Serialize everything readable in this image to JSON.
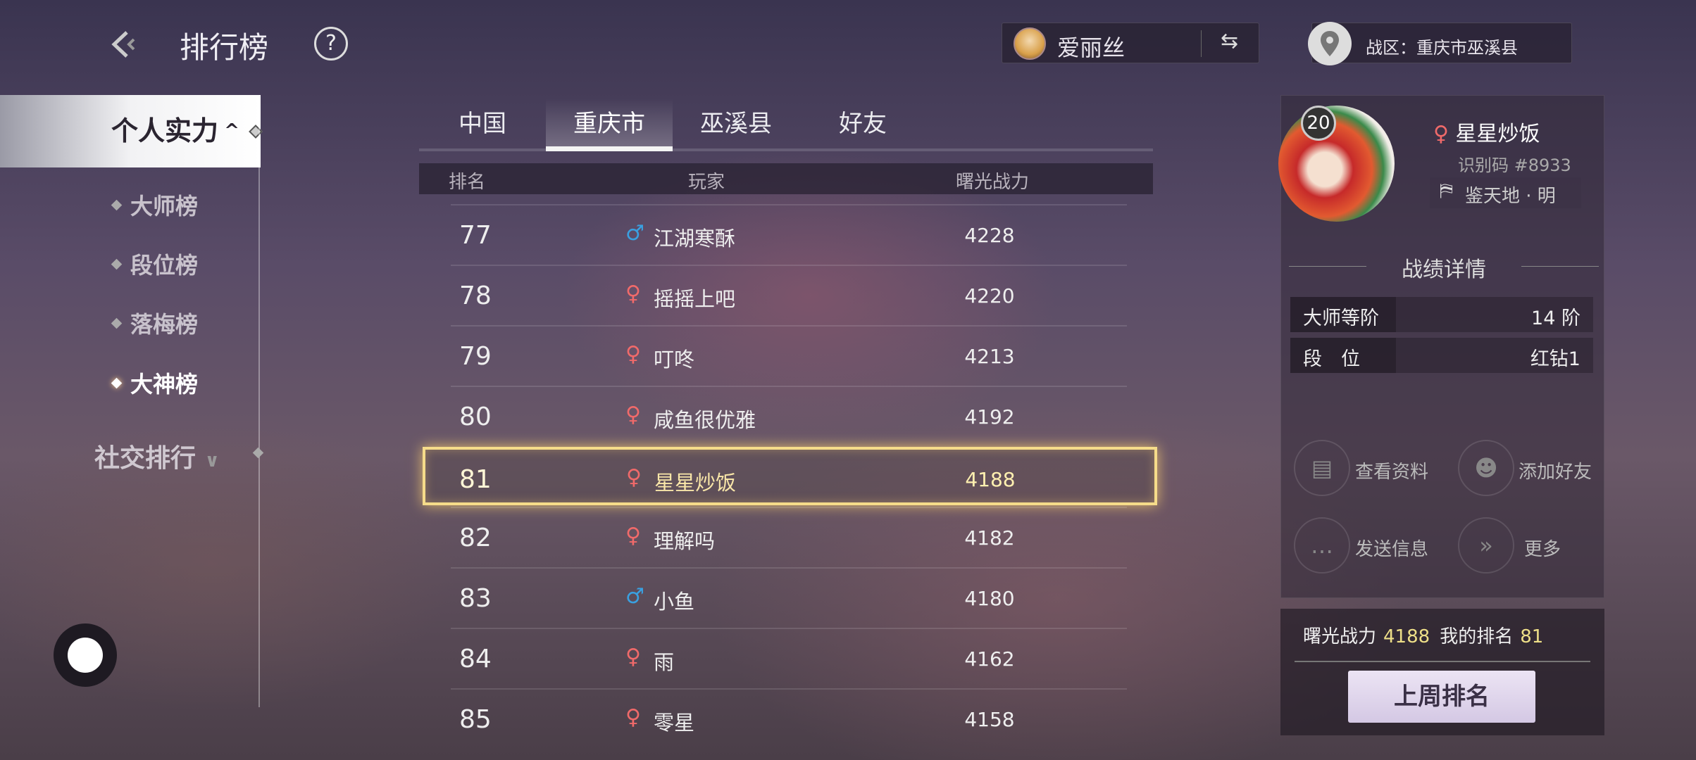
{
  "header": {
    "title": "排行榜",
    "help": "?",
    "account_name": "爱丽丝",
    "zone": "战区：重庆市巫溪县"
  },
  "sidebar": {
    "group1": "个人实力",
    "items": [
      {
        "label": "大师榜"
      },
      {
        "label": "段位榜"
      },
      {
        "label": "落梅榜"
      },
      {
        "label": "大神榜",
        "active": true
      }
    ],
    "group2": "社交排行"
  },
  "tabs": [
    {
      "label": "中国"
    },
    {
      "label": "重庆市",
      "active": true
    },
    {
      "label": "巫溪县"
    },
    {
      "label": "好友"
    }
  ],
  "table": {
    "columns": [
      "排名",
      "玩家",
      "曙光战力"
    ],
    "rows": [
      {
        "rank": "77",
        "gender": "male",
        "name": "江湖寒酥",
        "power": "4228"
      },
      {
        "rank": "78",
        "gender": "female",
        "name": "摇摇上吧",
        "power": "4220"
      },
      {
        "rank": "79",
        "gender": "female",
        "name": "叮咚",
        "power": "4213"
      },
      {
        "rank": "80",
        "gender": "female",
        "name": "咸鱼很优雅",
        "power": "4192"
      },
      {
        "rank": "81",
        "gender": "female",
        "name": "星星炒饭",
        "power": "4188",
        "highlighted": true
      },
      {
        "rank": "82",
        "gender": "female",
        "name": "理解吗",
        "power": "4182"
      },
      {
        "rank": "83",
        "gender": "male",
        "name": "小鱼",
        "power": "4180"
      },
      {
        "rank": "84",
        "gender": "female",
        "name": "雨",
        "power": "4162"
      },
      {
        "rank": "85",
        "gender": "female",
        "name": "零星",
        "power": "4158"
      }
    ]
  },
  "profile": {
    "level": "20",
    "name": "星星炒饭",
    "id": "识别码 #8933",
    "title": "鉴天地 · 明",
    "section": "战绩详情",
    "stats": [
      {
        "label": "大师等阶",
        "value": "14 阶"
      },
      {
        "label": "段　位",
        "value": "红钻1"
      }
    ],
    "actions": [
      {
        "label": "查看资料",
        "icon": "profile-search-icon"
      },
      {
        "label": "添加好友",
        "icon": "add-friend-icon"
      },
      {
        "label": "发送信息",
        "icon": "message-icon"
      },
      {
        "label": "更多",
        "icon": "double-chevron-icon"
      }
    ],
    "power_label": "曙光战力",
    "power": "4188",
    "rank_label": "我的排名",
    "rank": "81",
    "last_week": "上周排名"
  },
  "colors": {
    "male": "#3aa0e0",
    "female": "#f06a6a",
    "highlight": "#f6dc8a"
  }
}
